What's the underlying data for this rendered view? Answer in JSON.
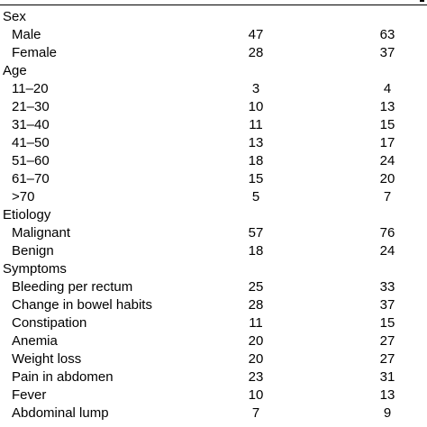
{
  "groups": [
    {
      "label": "Sex",
      "rows": [
        {
          "label": "Male",
          "n": "47",
          "pct": "63"
        },
        {
          "label": "Female",
          "n": "28",
          "pct": "37"
        }
      ]
    },
    {
      "label": "Age",
      "rows": [
        {
          "label": "11–20",
          "n": "3",
          "pct": "4"
        },
        {
          "label": "21–30",
          "n": "10",
          "pct": "13"
        },
        {
          "label": "31–40",
          "n": "11",
          "pct": "15"
        },
        {
          "label": "41–50",
          "n": "13",
          "pct": "17"
        },
        {
          "label": "51–60",
          "n": "18",
          "pct": "24"
        },
        {
          "label": "61–70",
          "n": "15",
          "pct": "20"
        },
        {
          "label": ">70",
          "n": "5",
          "pct": "7"
        }
      ]
    },
    {
      "label": "Etiology",
      "rows": [
        {
          "label": "Malignant",
          "n": "57",
          "pct": "76"
        },
        {
          "label": "Benign",
          "n": "18",
          "pct": "24"
        }
      ]
    },
    {
      "label": "Symptoms",
      "rows": [
        {
          "label": "Bleeding per rectum",
          "n": "25",
          "pct": "33"
        },
        {
          "label": "Change in bowel habits",
          "n": "28",
          "pct": "37"
        },
        {
          "label": "Constipation",
          "n": "11",
          "pct": "15"
        },
        {
          "label": "Anemia",
          "n": "20",
          "pct": "27"
        },
        {
          "label": "Weight loss",
          "n": "20",
          "pct": "27"
        },
        {
          "label": "Pain in abdomen",
          "n": "23",
          "pct": "31"
        },
        {
          "label": "Fever",
          "n": "10",
          "pct": "13"
        },
        {
          "label": "Abdominal lump",
          "n": "7",
          "pct": "9"
        }
      ]
    }
  ]
}
